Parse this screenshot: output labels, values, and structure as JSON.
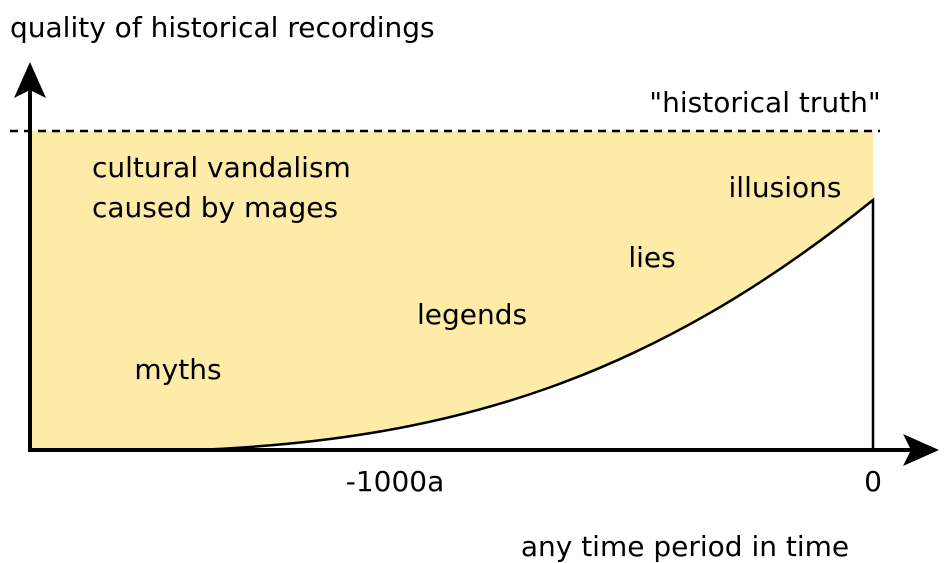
{
  "y_axis_label": "quality of historical recordings",
  "x_axis_label": "any time period in time",
  "reference_line_label": "\"historical truth\"",
  "x_ticks": [
    "-1000a",
    "0"
  ],
  "region_label": [
    "cultural vandalism",
    "caused by mages"
  ],
  "stages": [
    "myths",
    "legends",
    "lies",
    "illusions"
  ]
}
